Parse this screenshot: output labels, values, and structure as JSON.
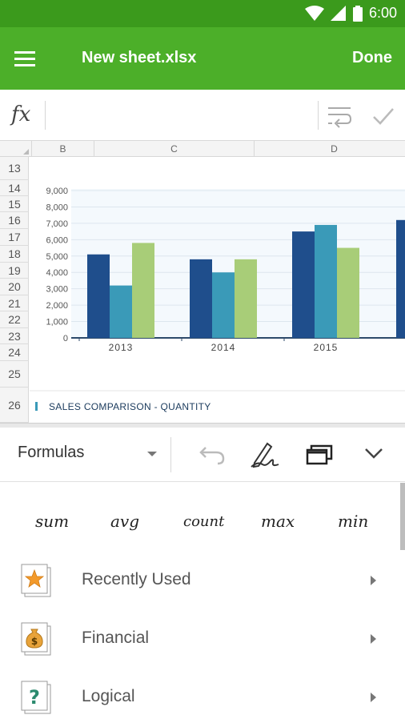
{
  "status": {
    "time": "6:00"
  },
  "appbar": {
    "title": "New sheet.xlsx",
    "done_label": "Done"
  },
  "formula": {
    "fx_label": "fx",
    "value": ""
  },
  "sheet": {
    "columns": [
      "B",
      "C",
      "D"
    ],
    "rows": [
      "13",
      "14",
      "15",
      "16",
      "17",
      "18",
      "19",
      "20",
      "21",
      "22",
      "23",
      "24",
      "25",
      "26"
    ]
  },
  "chart_data": {
    "type": "bar",
    "title": "SALES COMPARISON - QUANTITY",
    "categories": [
      "2013",
      "2014",
      "2015"
    ],
    "series": [
      {
        "values": [
          5100,
          4800,
          6500
        ],
        "color": "#1f4e8c"
      },
      {
        "values": [
          3200,
          4000,
          6900
        ],
        "color": "#3a9ab8"
      },
      {
        "values": [
          5800,
          4800,
          5500
        ],
        "color": "#a8cd78"
      }
    ],
    "ylim": [
      0,
      9000
    ],
    "yticks": [
      "0",
      "1,000",
      "2,000",
      "3,000",
      "4,000",
      "5,000",
      "6,000",
      "7,000",
      "8,000",
      "9,000"
    ],
    "grid": true
  },
  "toolbar": {
    "category_label": "Formulas"
  },
  "quick_functions": [
    "sum",
    "avg",
    "count",
    "max",
    "min"
  ],
  "categories": [
    {
      "label": "Recently Used",
      "icon": "star-icon"
    },
    {
      "label": "Financial",
      "icon": "money-bag-icon"
    },
    {
      "label": "Logical",
      "icon": "question-icon"
    }
  ],
  "colors": {
    "appbar": "#4caf29",
    "statusbar": "#3b9a1c"
  }
}
